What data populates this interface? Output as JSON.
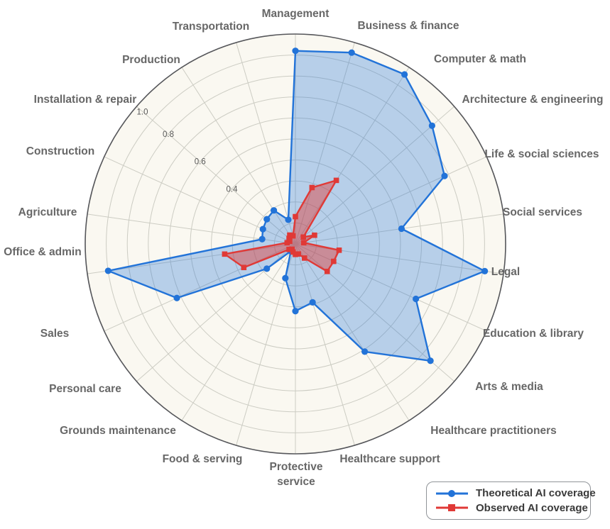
{
  "chart_data": {
    "type": "radar",
    "title": "",
    "categories": [
      "Management",
      "Business & finance",
      "Computer & math",
      "Architecture & engineering",
      "Life & social sciences",
      "Social services",
      "Legal",
      "Education & library",
      "Arts & media",
      "Healthcare practitioners",
      "Healthcare support",
      "Protective service",
      "Food & serving",
      "Grounds maintenance",
      "Personal care",
      "Sales",
      "Office & admin",
      "Agriculture",
      "Construction",
      "Installation & repair",
      "Production",
      "Transportation"
    ],
    "series": [
      {
        "name": "Theoretical AI coverage",
        "marker": "circle",
        "color": "#2273d8",
        "fill_alpha": 0.31,
        "values": [
          0.92,
          0.95,
          0.96,
          0.86,
          0.78,
          0.51,
          0.91,
          0.63,
          0.85,
          0.61,
          0.29,
          0.32,
          0.17,
          0.04,
          0.18,
          0.62,
          0.9,
          0.16,
          0.17,
          0.18,
          0.19,
          0.12
        ]
      },
      {
        "name": "Observed AI coverage",
        "marker": "square",
        "color": "#e03936",
        "fill_alpha": 0.45,
        "values": [
          0.13,
          0.28,
          0.36,
          0.05,
          0.1,
          0.04,
          0.21,
          0.2,
          0.2,
          0.08,
          0.05,
          0.05,
          0.04,
          0.03,
          0.04,
          0.27,
          0.34,
          0.04,
          0.03,
          0.04,
          0.05,
          0.04
        ]
      }
    ],
    "radial_axis": {
      "min": 0,
      "max": 1.0,
      "grid_step": 0.1,
      "tick_values": [
        0.4,
        0.6,
        0.8,
        1.0
      ],
      "tick_labels": [
        "0.4",
        "0.6",
        "0.8",
        "1.0"
      ],
      "tick_angle_deg": 310.9
    },
    "style": {
      "ring_color": "#ccccc3",
      "spoke_color": "#ccccc3",
      "outer_circle_color": "#55565a",
      "polar_bg_color": "#faf8f1",
      "tick_text_color": "#585858",
      "category_label_color": "#676767"
    },
    "legend": {
      "position": "bottom-right",
      "items": [
        {
          "label": "Theoretical AI coverage",
          "marker": "circle",
          "color": "#2273d8"
        },
        {
          "label": "Observed AI coverage",
          "marker": "square",
          "color": "#e03936"
        }
      ]
    }
  }
}
